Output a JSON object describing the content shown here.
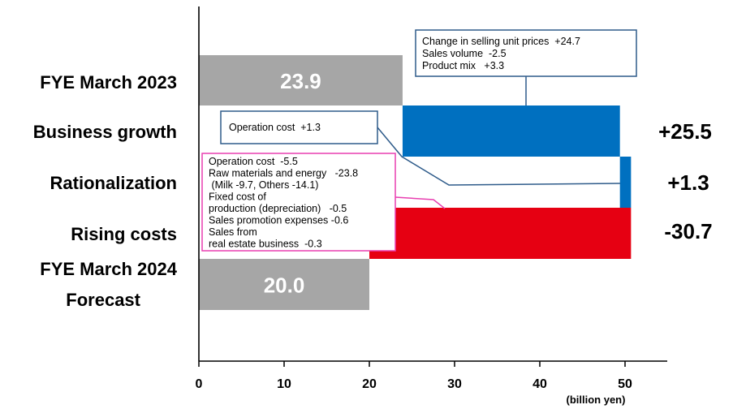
{
  "chart_data": {
    "type": "bar",
    "subtype": "waterfall",
    "orientation": "horizontal",
    "unit_label": "(billion yen)",
    "xlim": [
      0,
      55
    ],
    "x_ticks": [
      "0",
      "10",
      "20",
      "30",
      "40",
      "50"
    ],
    "categories": [
      [
        "FYE March 2023"
      ],
      [
        "Business growth"
      ],
      [
        "Rationalization"
      ],
      [
        "Rising costs"
      ],
      [
        "FYE March 2024",
        "Forecast"
      ]
    ],
    "bars": [
      {
        "kind": "total",
        "start": 0,
        "end": 23.9,
        "label": "23.9",
        "color": "#a6a6a6"
      },
      {
        "kind": "increase",
        "start": 23.9,
        "end": 49.4,
        "label": "+25.5",
        "color": "#0070c0"
      },
      {
        "kind": "increase",
        "start": 49.4,
        "end": 50.7,
        "label": "+1.3",
        "color": "#0070c0"
      },
      {
        "kind": "decrease",
        "start": 50.7,
        "end": 20.0,
        "label": "-30.7",
        "color": "#e60012"
      },
      {
        "kind": "total",
        "start": 0,
        "end": 20.0,
        "label": "20.0",
        "color": "#a6a6a6"
      }
    ],
    "annotations": [
      {
        "target": "Business growth",
        "border_color": "#2e5b8a",
        "lines": [
          "Change in selling unit prices  +24.7",
          "Sales volume  -2.5",
          "Product mix   +3.3"
        ]
      },
      {
        "target": "Rationalization",
        "border_color": "#2e5b8a",
        "lines": [
          "Operation cost  +1.3"
        ]
      },
      {
        "target": "Rising costs",
        "border_color": "#e83fb0",
        "lines": [
          "Operation cost  -5.5",
          "Raw materials and energy   -23.8",
          " (Milk -9.7, Others -14.1)",
          "Fixed cost of",
          "production (depreciation)   -0.5",
          "Sales promotion expenses -0.6",
          "Sales from",
          "real estate business  -0.3"
        ]
      }
    ]
  }
}
